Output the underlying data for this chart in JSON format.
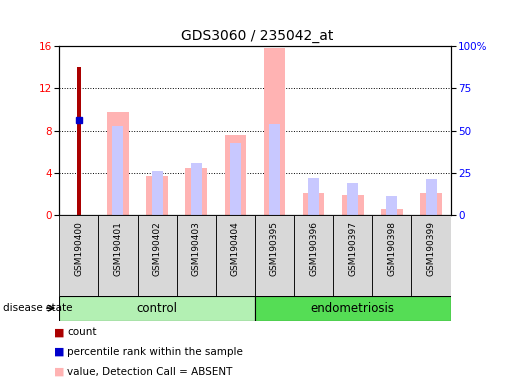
{
  "title": "GDS3060 / 235042_at",
  "samples": [
    "GSM190400",
    "GSM190401",
    "GSM190402",
    "GSM190403",
    "GSM190404",
    "GSM190395",
    "GSM190396",
    "GSM190397",
    "GSM190398",
    "GSM190399"
  ],
  "groups": [
    "control",
    "control",
    "control",
    "control",
    "control",
    "endometriosis",
    "endometriosis",
    "endometriosis",
    "endometriosis",
    "endometriosis"
  ],
  "value_absent": [
    0,
    9.8,
    3.7,
    4.5,
    7.6,
    15.8,
    2.1,
    1.9,
    0.6,
    2.1
  ],
  "rank_absent": [
    0,
    8.4,
    4.2,
    4.9,
    6.8,
    8.6,
    3.5,
    3.0,
    1.8,
    3.4
  ],
  "count": [
    14.0,
    0,
    0,
    0,
    0,
    0,
    0,
    0,
    0,
    0
  ],
  "percentile_rank": [
    9.0,
    0,
    0,
    0,
    0,
    0,
    0,
    0,
    0,
    0
  ],
  "ylim_left": [
    0,
    16
  ],
  "ylim_right": [
    0,
    100
  ],
  "yticks_left": [
    0,
    4,
    8,
    12,
    16
  ],
  "yticks_right": [
    0,
    25,
    50,
    75,
    100
  ],
  "yticklabels_right": [
    "0",
    "25",
    "50",
    "75",
    "100%"
  ],
  "color_value_absent": "#ffb3b3",
  "color_rank_absent": "#c8c8ff",
  "color_count": "#aa0000",
  "color_percentile": "#0000cc",
  "color_control_bg": "#b3f0b3",
  "color_endometriosis_bg": "#55dd55",
  "color_xtick_bg": "#d8d8d8",
  "background_color": "#ffffff"
}
